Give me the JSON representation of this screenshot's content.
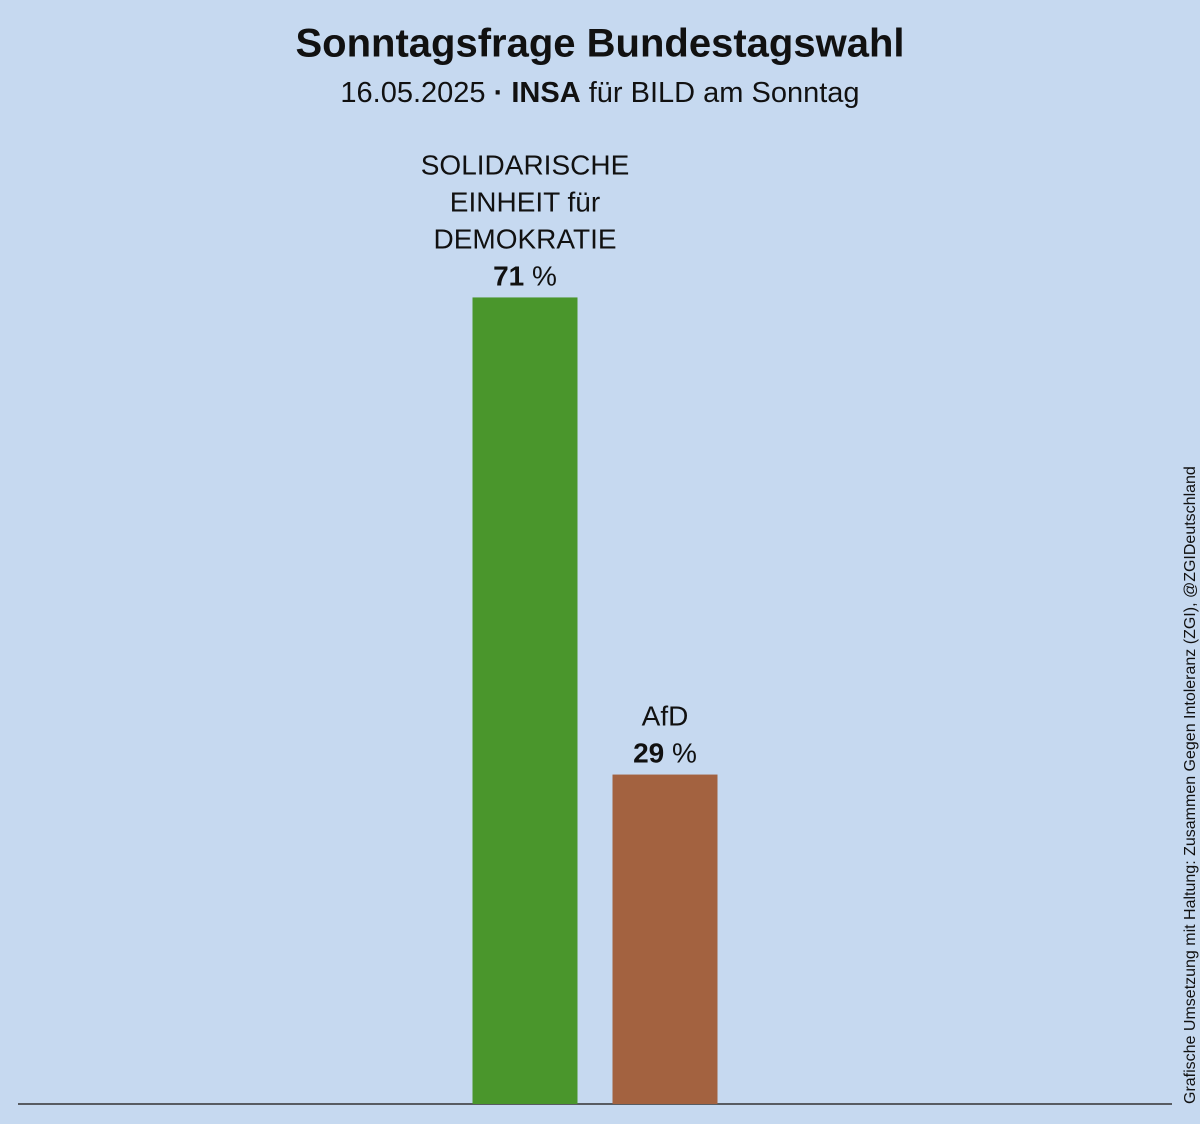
{
  "chart_data": {
    "type": "bar",
    "title": "Sonntagsfrage Bundestagswahl",
    "subtitle": {
      "date": "16.05.2025",
      "separator": "·",
      "institute": "INSA",
      "client": "für BILD am Sonntag"
    },
    "categories": [
      "SOLIDARISCHE EINHEIT für DEMOKRATIE",
      "AfD"
    ],
    "values": [
      71,
      29
    ],
    "value_labels": [
      "71 %",
      "29 %"
    ],
    "colors": [
      "#4a962c",
      "#a36240"
    ],
    "ylim": [
      0,
      75
    ],
    "credit": "Grafische Umsetzung mit Haltung: Zusammen Gegen Intoleranz (ZGI), @ZGIDeutschland"
  }
}
